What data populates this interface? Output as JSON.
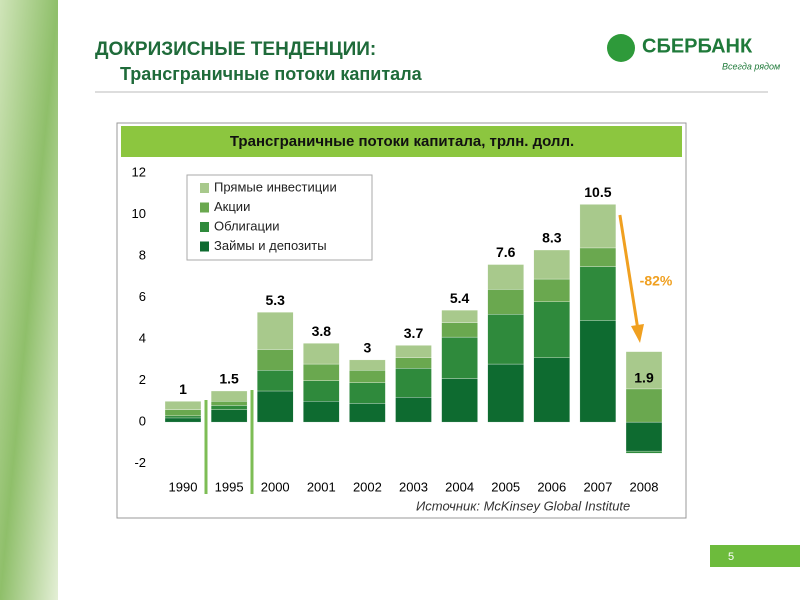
{
  "header": {
    "title": "ДОКРИЗИСНЫЕ ТЕНДЕНЦИИ:",
    "subtitle": "Трансграничные потоки капитала"
  },
  "logo": {
    "name": "СБЕРБАНК",
    "slogan": "Всегда рядом"
  },
  "page_number": "5",
  "chart_data": {
    "type": "stacked-bar",
    "title": "Трансграничные потоки капитала, трлн. долл.",
    "categories": [
      "1990",
      "1995",
      "2000",
      "2001",
      "2002",
      "2003",
      "2004",
      "2005",
      "2006",
      "2007",
      "2008"
    ],
    "series": [
      {
        "name": "Займы и депозиты",
        "color": "#0e6b30",
        "values": [
          0.2,
          0.6,
          1.5,
          1.0,
          0.9,
          1.2,
          2.1,
          2.8,
          3.1,
          4.9,
          -1.4
        ]
      },
      {
        "name": "Облигации",
        "color": "#2f8a3c",
        "values": [
          0.1,
          0.2,
          1.0,
          1.0,
          1.0,
          1.4,
          2.0,
          2.4,
          2.7,
          2.6,
          -0.1
        ]
      },
      {
        "name": "Акции",
        "color": "#6aa84f",
        "values": [
          0.3,
          0.2,
          1.0,
          0.8,
          0.6,
          0.5,
          0.7,
          1.2,
          1.1,
          0.9,
          1.6
        ]
      },
      {
        "name": "Прямые инвестиции",
        "color": "#a8c98c",
        "values": [
          0.4,
          0.5,
          1.8,
          1.0,
          0.5,
          0.6,
          0.6,
          1.2,
          1.4,
          2.1,
          1.8
        ]
      }
    ],
    "totals": [
      1,
      1.5,
      5.3,
      3.8,
      3,
      3.7,
      5.4,
      7.6,
      8.3,
      10.5,
      1.9
    ],
    "ylim": [
      -2.6,
      12.4
    ],
    "yticks": [
      -2,
      0,
      2,
      4,
      6,
      8,
      10,
      12
    ],
    "annotation": "-82%",
    "source": "Источник:  McKinsey Global Institute"
  }
}
